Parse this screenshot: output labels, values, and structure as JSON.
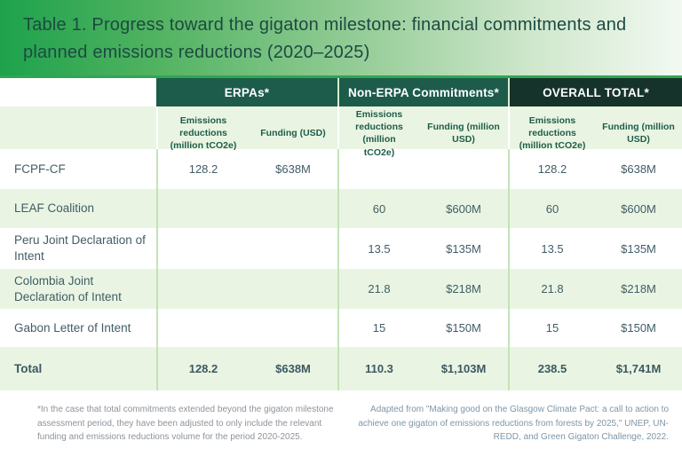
{
  "title": "Table 1. Progress toward the gigaton milestone: financial commitments and planned emissions reductions (2020–2025)",
  "colors": {
    "banner_green": "#1ea24c",
    "group_header_green": "#1d5c4b",
    "overall_header_dark": "#16332b",
    "row_tint_green": "#e9f5e2",
    "body_text": "#415d66"
  },
  "table": {
    "groups": [
      {
        "label": "ERPAs*",
        "columns": [
          "Emissions reductions (million tCO2e)",
          "Funding (USD)"
        ]
      },
      {
        "label": "Non-ERPA Commitments*",
        "columns": [
          "Emissions reductions (million tCO2e)",
          "Funding (million USD)"
        ]
      },
      {
        "label": "OVERALL TOTAL*",
        "columns": [
          "Emissions reductions (million tCO2e)",
          "Funding (million USD)"
        ]
      }
    ],
    "rows": [
      {
        "label": "FCPF-CF",
        "values": [
          "128.2",
          "$638M",
          "",
          "",
          "128.2",
          "$638M"
        ]
      },
      {
        "label": "LEAF Coalition",
        "values": [
          "",
          "",
          "60",
          "$600M",
          "60",
          "$600M"
        ]
      },
      {
        "label": "Peru Joint Declaration of Intent",
        "values": [
          "",
          "",
          "13.5",
          "$135M",
          "13.5",
          "$135M"
        ]
      },
      {
        "label": "Colombia Joint Declaration of Intent",
        "values": [
          "",
          "",
          "21.8",
          "$218M",
          "21.8",
          "$218M"
        ]
      },
      {
        "label": "Gabon Letter of Intent",
        "values": [
          "",
          "",
          "15",
          "$150M",
          "15",
          "$150M"
        ]
      },
      {
        "label": "Total",
        "values": [
          "128.2",
          "$638M",
          "110.3",
          "$1,103M",
          "238.5",
          "$1,741M"
        ]
      }
    ]
  },
  "footnotes": {
    "left": "*In the case that total commitments extended beyond the gigaton milestone assessment period, they have been adjusted to only include the relevant funding and emissions reductions volume for the period 2020-2025.",
    "right": "Adapted from \"Making good on the Glasgow Climate Pact: a call to action to achieve one gigaton of emissions reductions from forests by 2025,\" UNEP, UN-REDD, and Green Gigaton Challenge, 2022."
  }
}
